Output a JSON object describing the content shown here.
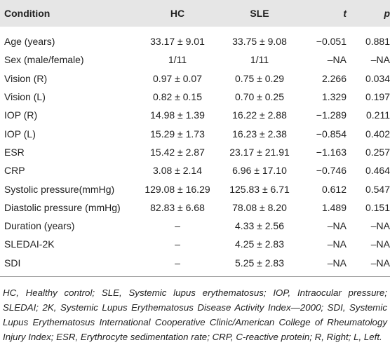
{
  "table": {
    "columns": [
      "Condition",
      "HC",
      "SLE",
      "t",
      "p"
    ],
    "rows": [
      [
        "Age (years)",
        "33.17 ± 9.01",
        "33.75 ± 9.08",
        "−0.051",
        "0.881"
      ],
      [
        "Sex (male/female)",
        "1/11",
        "1/11",
        "–NA",
        "–NA"
      ],
      [
        "Vision (R)",
        "0.97 ± 0.07",
        "0.75 ± 0.29",
        "2.266",
        "0.034"
      ],
      [
        "Vision (L)",
        "0.82 ± 0.15",
        "0.70 ± 0.25",
        "1.329",
        "0.197"
      ],
      [
        "IOP (R)",
        "14.98 ± 1.39",
        "16.22 ± 2.88",
        "−1.289",
        "0.211"
      ],
      [
        "IOP (L)",
        "15.29 ± 1.73",
        "16.23 ± 2.38",
        "−0.854",
        "0.402"
      ],
      [
        "ESR",
        "15.42 ± 2.87",
        "23.17 ± 21.91",
        "−1.163",
        "0.257"
      ],
      [
        "CRP",
        "3.08 ± 2.14",
        "6.96 ± 17.10",
        "−0.746",
        "0.464"
      ],
      [
        "Systolic pressure(mmHg)",
        "129.08 ± 16.29",
        "125.83 ± 6.71",
        "0.612",
        "0.547"
      ],
      [
        "Diastolic pressure (mmHg)",
        "82.83 ± 6.68",
        "78.08 ± 8.20",
        "1.489",
        "0.151"
      ],
      [
        "Duration (years)",
        "–",
        "4.33 ± 2.56",
        "–NA",
        "–NA"
      ],
      [
        "SLEDAI-2K",
        "–",
        "4.25 ± 2.83",
        "–NA",
        "–NA"
      ],
      [
        "SDI",
        "–",
        "5.25 ± 2.83",
        "–NA",
        "–NA"
      ]
    ],
    "footnote": "HC, Healthy control; SLE, Systemic lupus erythematosus; IOP, Intraocular pressure; SLEDAI; 2K, Systemic Lupus Erythematosus Disease Activity Index—2000; SDI, Systemic Lupus Erythematosus International Cooperative Clinic/American College of Rheumatology Injury Index; ESR, Erythrocyte sedimentation rate; CRP, C-reactive protein; R, Right; L, Left."
  }
}
